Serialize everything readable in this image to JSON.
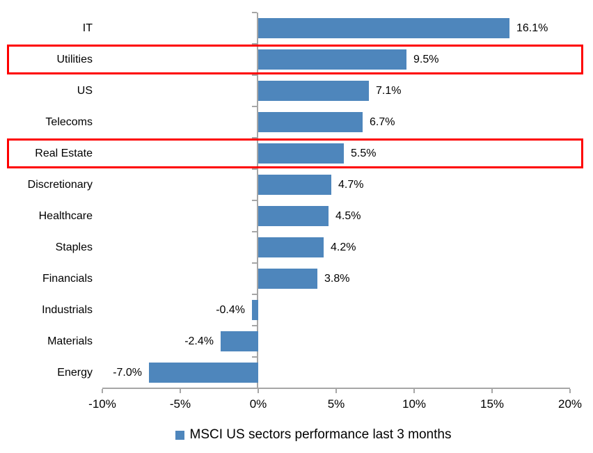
{
  "chart_data": {
    "type": "bar",
    "orientation": "horizontal",
    "categories": [
      "IT",
      "Utilities",
      "US",
      "Telecoms",
      "Real Estate",
      "Discretionary",
      "Healthcare",
      "Staples",
      "Financials",
      "Industrials",
      "Materials",
      "Energy"
    ],
    "values": [
      16.1,
      9.5,
      7.1,
      6.7,
      5.5,
      4.7,
      4.5,
      4.2,
      3.8,
      -0.4,
      -2.4,
      -7.0
    ],
    "value_labels": [
      "16.1%",
      "9.5%",
      "7.1%",
      "6.7%",
      "5.5%",
      "4.7%",
      "4.5%",
      "4.2%",
      "3.8%",
      "-0.4%",
      "-2.4%",
      "-7.0%"
    ],
    "x_tick_values": [
      -10,
      -5,
      0,
      5,
      10,
      15,
      20
    ],
    "x_tick_labels": [
      "-10%",
      "-5%",
      "0%",
      "5%",
      "10%",
      "15%",
      "20%"
    ],
    "xlim": [
      -10,
      20
    ],
    "grid": "off",
    "legend": "MSCI US sectors performance last 3 months",
    "legend_position": "bottom",
    "highlighted_categories": [
      "Utilities",
      "Real Estate"
    ],
    "colors": {
      "bar": "#4E86BC",
      "highlight_box": "#FE0000",
      "axis": "#A6A6A6",
      "text": "#000000"
    }
  }
}
